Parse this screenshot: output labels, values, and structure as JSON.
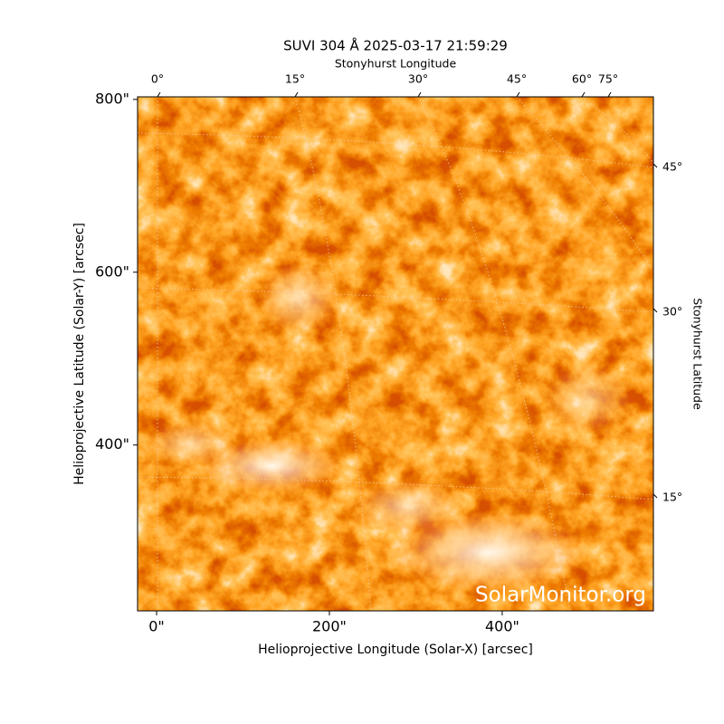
{
  "chart_data": {
    "type": "image",
    "title": "SUVI 304 Å 2025-03-17 21:59:29",
    "x_label": "Helioprojective Longitude (Solar-X) [arcsec]",
    "y_label": "Helioprojective Latitude (Solar-Y) [arcsec]",
    "top_axis_label": "Stonyhurst Longitude",
    "right_axis_label": "Stonyhurst Latitude",
    "xlim": [
      -22,
      575
    ],
    "ylim": [
      208,
      803
    ],
    "xticks": [
      {
        "value": 0,
        "label": "0\""
      },
      {
        "value": 200,
        "label": "200\""
      },
      {
        "value": 400,
        "label": "400\""
      }
    ],
    "yticks": [
      {
        "value": 400,
        "label": "400\""
      },
      {
        "value": 600,
        "label": "600\""
      },
      {
        "value": 800,
        "label": "800\""
      }
    ],
    "top_ticks": [
      {
        "value": 0,
        "label": "0°"
      },
      {
        "value": 15,
        "label": "15°"
      },
      {
        "value": 30,
        "label": "30°"
      },
      {
        "value": 45,
        "label": "45°"
      },
      {
        "value": 60,
        "label": "60°"
      },
      {
        "value": 75,
        "label": "75°"
      }
    ],
    "right_ticks": [
      {
        "value": 45,
        "label": "45°"
      },
      {
        "value": 30,
        "label": "30°"
      },
      {
        "value": 15,
        "label": "15°"
      }
    ],
    "watermark": "SolarMonitor.org"
  }
}
